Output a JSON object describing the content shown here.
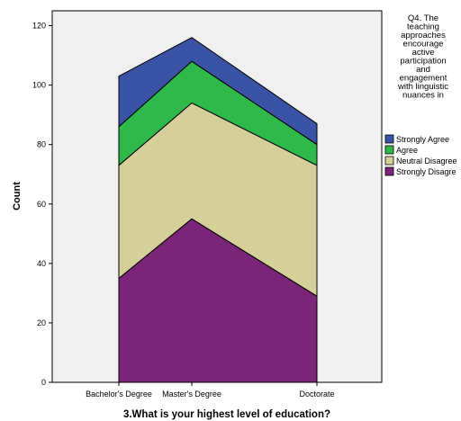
{
  "chart_data": {
    "type": "area",
    "stacked": true,
    "categories": [
      "Bachelor's Degree",
      "Master's Degree",
      "Doctorate"
    ],
    "series": [
      {
        "name": "Strongly Disagree",
        "values": [
          35,
          55,
          29
        ],
        "color": "#7b2578"
      },
      {
        "name": "Neutral Disagree",
        "values": [
          38,
          39,
          44
        ],
        "color": "#d5cf9a"
      },
      {
        "name": "Agree",
        "values": [
          13,
          14,
          7
        ],
        "color": "#2fb94a"
      },
      {
        "name": "Strongly Agree",
        "values": [
          17,
          8,
          7
        ],
        "color": "#3a53a4"
      }
    ],
    "xlabel": "3.What is your highest level of education?",
    "ylabel": "Count",
    "ylim": [
      0,
      125
    ],
    "yticks": [
      0,
      20,
      40,
      60,
      80,
      100,
      120
    ],
    "grid": false,
    "plot_background": "#f0f0f0",
    "legend": {
      "title_lines": [
        "Q4. The",
        "teaching",
        "approaches",
        "encourage",
        "active",
        "participation",
        "and",
        "engagement",
        "with linguistic",
        "nuances in"
      ],
      "position": "right",
      "entries": [
        {
          "label": "Strongly Agree",
          "color": "#3a53a4"
        },
        {
          "label": "Agree",
          "color": "#2fb94a"
        },
        {
          "label": "Neutral Disagree",
          "color": "#d5cf9a"
        },
        {
          "label": "Strongly Disagre",
          "color": "#7b2578"
        }
      ]
    }
  }
}
